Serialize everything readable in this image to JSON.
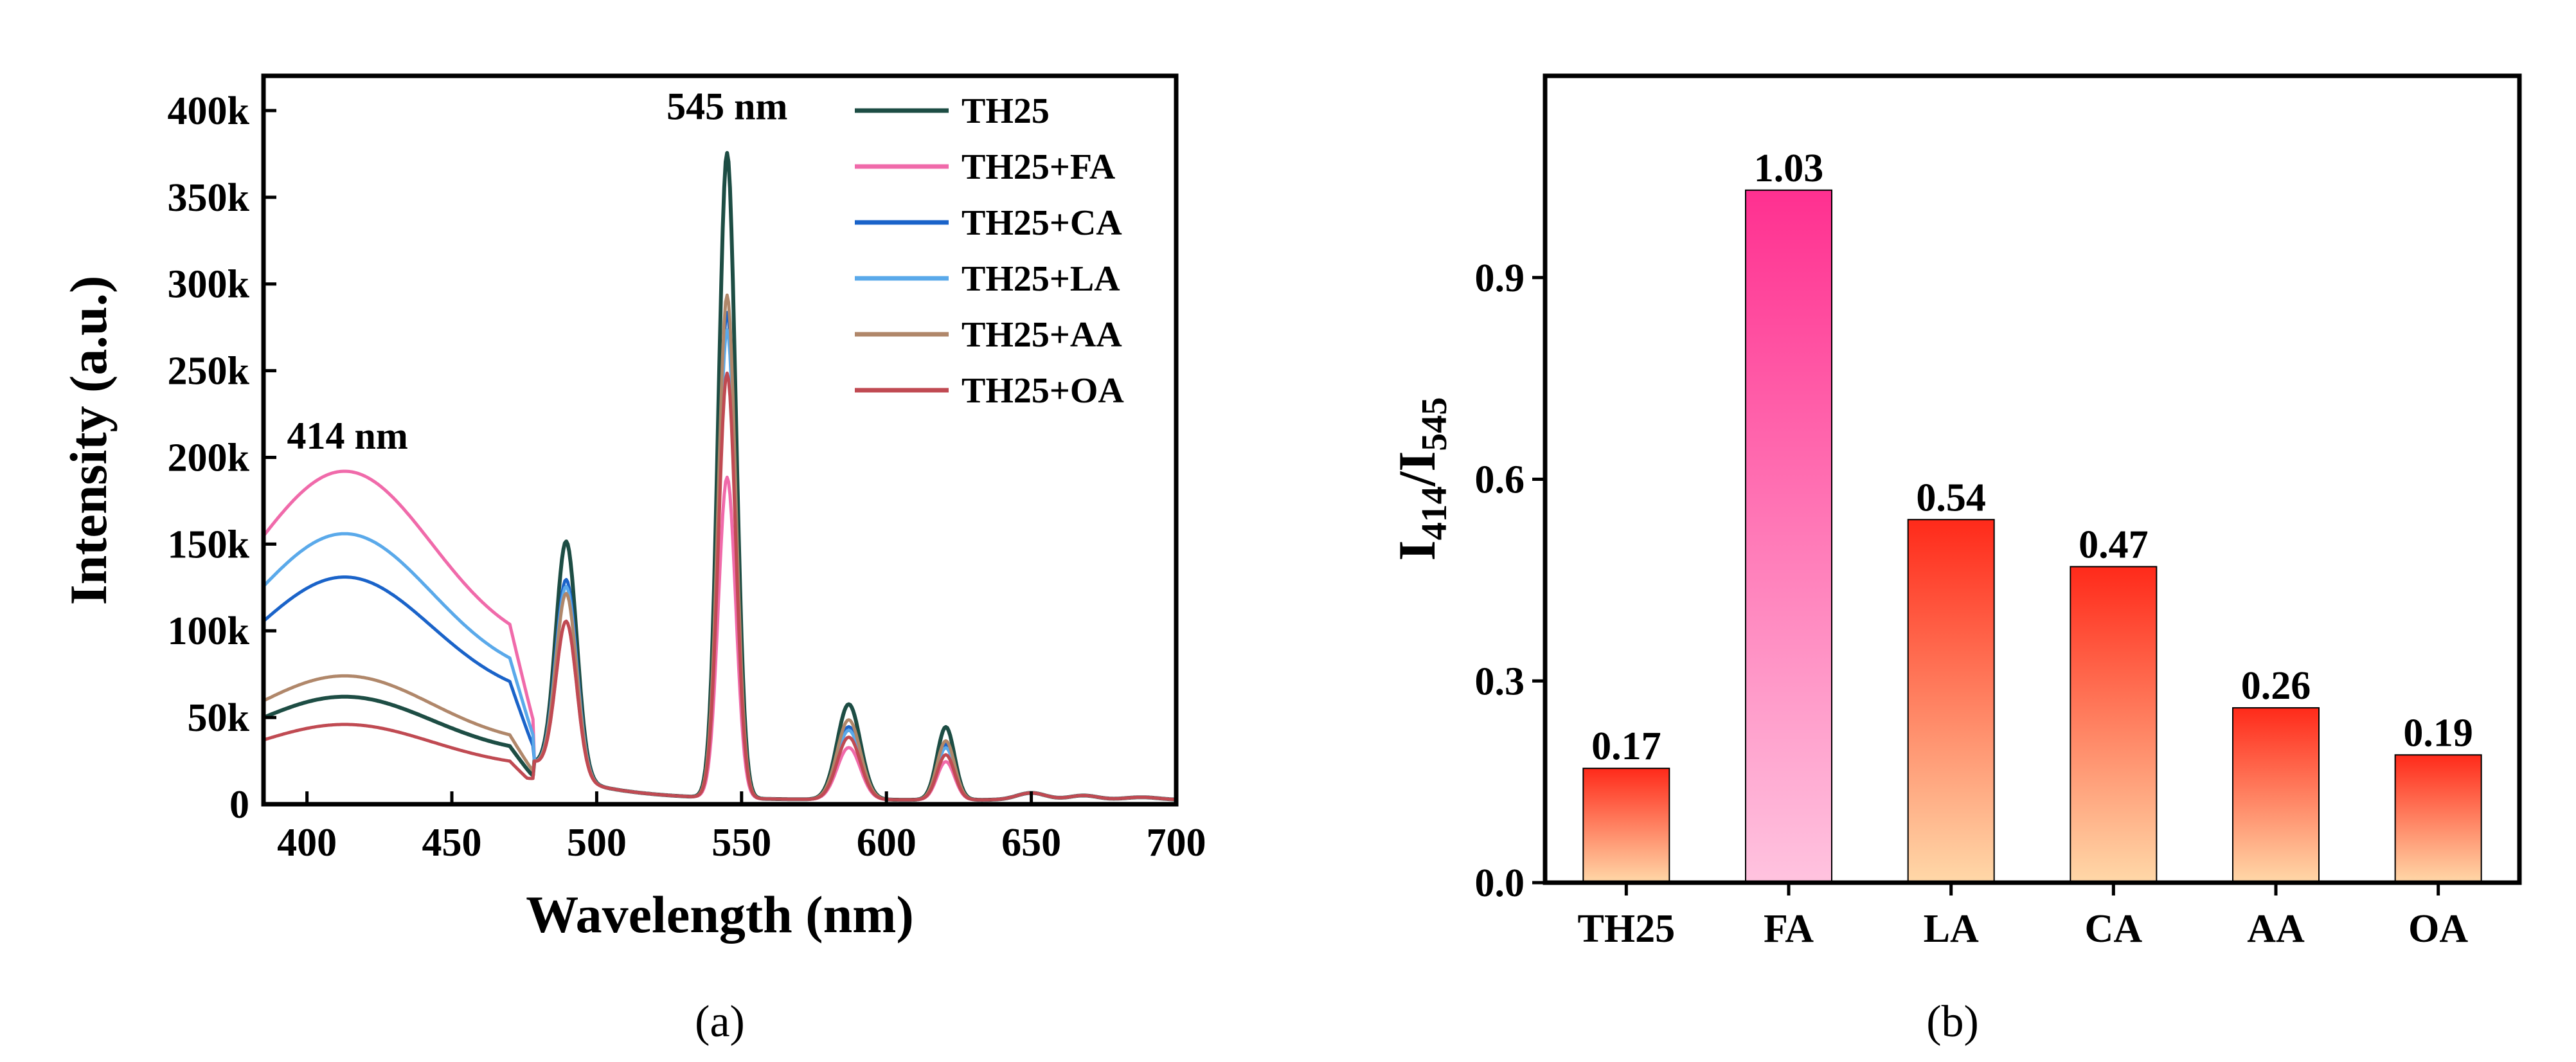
{
  "chart_data": [
    {
      "type": "line",
      "panel_label": "(a)",
      "xlabel": "Wavelength (nm)",
      "ylabel": "Intensity (a.u.)",
      "xlim": [
        385,
        700
      ],
      "ylim": [
        0,
        420000
      ],
      "xticks": [
        400,
        450,
        500,
        550,
        600,
        650,
        700
      ],
      "yticks": [
        0,
        50000,
        100000,
        150000,
        200000,
        250000,
        300000,
        350000,
        400000
      ],
      "ytick_labels": [
        "0",
        "50k",
        "100k",
        "150k",
        "200k",
        "250k",
        "300k",
        "350k",
        "400k"
      ],
      "annotations": [
        {
          "text": "414 nm",
          "x": 414,
          "y": 205000
        },
        {
          "text": "545 nm",
          "x": 545,
          "y": 395000
        }
      ],
      "legend_position": "top-right",
      "series": [
        {
          "name": "TH25",
          "color": "#1d4d44",
          "broad": 62000,
          "p490": 136000,
          "p545": 372000,
          "p587": 55000,
          "p621": 42000
        },
        {
          "name": "TH25+FA",
          "color": "#f06aaa",
          "broad": 192000,
          "p490": 90000,
          "p545": 185000,
          "p587": 30000,
          "p621": 22000
        },
        {
          "name": "TH25+CA",
          "color": "#1a63c9",
          "broad": 131000,
          "p490": 114000,
          "p545": 280000,
          "p587": 42000,
          "p621": 32000
        },
        {
          "name": "TH25+LA",
          "color": "#5aa9ea",
          "broad": 156000,
          "p490": 110000,
          "p545": 270000,
          "p587": 40000,
          "p621": 30000
        },
        {
          "name": "TH25+AA",
          "color": "#b0876a",
          "broad": 74000,
          "p490": 106000,
          "p545": 290000,
          "p587": 46000,
          "p621": 34000
        },
        {
          "name": "TH25+OA",
          "color": "#c04a52",
          "broad": 46000,
          "p490": 90000,
          "p545": 245000,
          "p587": 36000,
          "p621": 26000
        }
      ]
    },
    {
      "type": "bar",
      "panel_label": "(b)",
      "ylabel_main": "I",
      "ylabel_sub1": "414",
      "ylabel_sep": "/I",
      "ylabel_sub2": "545",
      "ylim": [
        0,
        1.2
      ],
      "yticks": [
        0.0,
        0.3,
        0.6,
        0.9
      ],
      "ytick_labels": [
        "0.0",
        "0.3",
        "0.6",
        "0.9"
      ],
      "categories": [
        "TH25",
        "FA",
        "LA",
        "CA",
        "AA",
        "OA"
      ],
      "values": [
        0.17,
        1.03,
        0.54,
        0.47,
        0.26,
        0.19
      ],
      "value_labels": [
        "0.17",
        "1.03",
        "0.54",
        "0.47",
        "0.26",
        "0.19"
      ],
      "bar_gradient_default": [
        "#ff2a1a",
        "#ffd8a8"
      ],
      "bar_gradient_highlight": [
        "#ff3090",
        "#ffc3df"
      ],
      "highlight_category": "FA"
    }
  ]
}
